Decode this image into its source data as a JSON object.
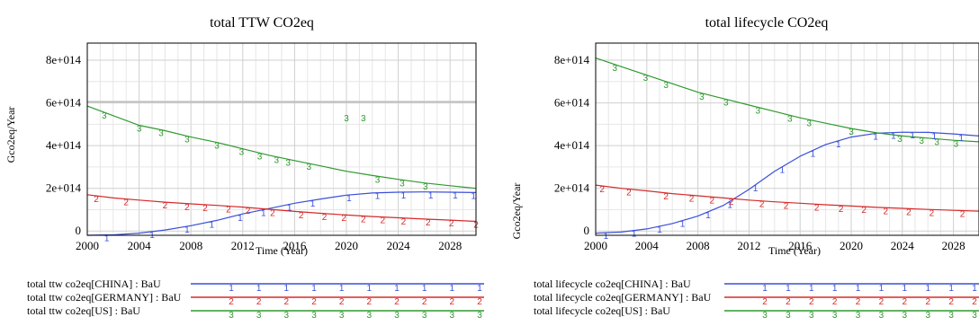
{
  "chart_data": [
    {
      "type": "line",
      "title": "total TTW CO2eq",
      "xlabel": "Time (Year)",
      "ylabel": "Gco2eq/Year",
      "xlim": [
        2000,
        2030
      ],
      "ylim": [
        -20000000000000.0,
        880000000000000.0
      ],
      "x_ticks": [
        2000,
        2004,
        2008,
        2012,
        2016,
        2020,
        2024,
        2028
      ],
      "y_ticks": [
        0,
        200000000000000.0,
        400000000000000.0,
        600000000000000.0,
        800000000000000.0
      ],
      "y_tick_labels": [
        "0",
        "2e+014",
        "4e+014",
        "6e+014",
        "8e+014"
      ],
      "reference_line": {
        "y": 605000000000000.0,
        "color": "#c0c0c0"
      },
      "series": [
        {
          "name": "total ttw co2eq[CHINA] : BaU",
          "marker": "1",
          "color": "#3a4fd8",
          "x": [
            2000,
            2002,
            2004,
            2006,
            2008,
            2010,
            2012,
            2014,
            2016,
            2018,
            2020,
            2022,
            2024,
            2026,
            2028,
            2030
          ],
          "y": [
            -20000000000000.0,
            -18000000000000.0,
            -10000000000000.0,
            5000000000000.0,
            25000000000000.0,
            50000000000000.0,
            80000000000000.0,
            105000000000000.0,
            130000000000000.0,
            150000000000000.0,
            168000000000000.0,
            178000000000000.0,
            182000000000000.0,
            183000000000000.0,
            182000000000000.0,
            180000000000000.0
          ],
          "marker_x": [
            2001.5,
            2005,
            2007.7,
            2009.6,
            2011.8,
            2013.6,
            2015.6,
            2017.4,
            2020.2,
            2022.4,
            2024.4,
            2026.5,
            2028.4,
            2029.8
          ]
        },
        {
          "name": "total ttw co2eq[GERMANY] : BaU",
          "marker": "2",
          "color": "#d52a2a",
          "x": [
            2000,
            2002,
            2004,
            2006,
            2008,
            2010,
            2012,
            2014,
            2016,
            2018,
            2020,
            2022,
            2024,
            2026,
            2028,
            2030
          ],
          "y": [
            170000000000000.0,
            155000000000000.0,
            145000000000000.0,
            135000000000000.0,
            127000000000000.0,
            120000000000000.0,
            112000000000000.0,
            102000000000000.0,
            92000000000000.0,
            83000000000000.0,
            75000000000000.0,
            68000000000000.0,
            62000000000000.0,
            56000000000000.0,
            51000000000000.0,
            45000000000000.0
          ],
          "marker_x": [
            2000.7,
            2003,
            2006,
            2007.7,
            2009.1,
            2010.9,
            2012.4,
            2014.3,
            2016.5,
            2018.3,
            2019.8,
            2021.3,
            2022.8,
            2024.4,
            2026.3,
            2028.1,
            2030
          ]
        },
        {
          "name": "total ttw co2eq[US] : BaU",
          "marker": "3",
          "color": "#2f9a2f",
          "x": [
            2000,
            2002,
            2004,
            2006,
            2008,
            2010,
            2012,
            2014,
            2016,
            2018,
            2020,
            2022,
            2024,
            2026,
            2028,
            2030
          ],
          "y": [
            585000000000000.0,
            540000000000000.0,
            495000000000000.0,
            470000000000000.0,
            440000000000000.0,
            415000000000000.0,
            385000000000000.0,
            355000000000000.0,
            330000000000000.0,
            305000000000000.0,
            280000000000000.0,
            260000000000000.0,
            242000000000000.0,
            225000000000000.0,
            212000000000000.0,
            200000000000000.0
          ],
          "marker_x": [
            2001.3,
            2004,
            2005.7,
            2007.7,
            2010,
            2011.9,
            2013.3,
            2014.6,
            2015.5,
            2017.1,
            2022.4,
            2024.3,
            2026.1
          ],
          "outlier_markers": [
            [
              2020,
              530000000000000.0
            ],
            [
              2021.3,
              530000000000000.0
            ]
          ]
        }
      ],
      "legend": [
        "total ttw co2eq[CHINA] : BaU",
        "total ttw co2eq[GERMANY] : BaU",
        "total ttw co2eq[US] : BaU"
      ],
      "legend_position": "bottom-left"
    },
    {
      "type": "line",
      "title": "total lifecycle CO2eq",
      "xlabel": "Time (Year)",
      "ylabel": "Gco2eq/Year",
      "xlim": [
        2000,
        2030
      ],
      "ylim": [
        -20000000000000.0,
        880000000000000.0
      ],
      "x_ticks": [
        2000,
        2004,
        2008,
        2012,
        2016,
        2020,
        2024,
        2028
      ],
      "y_ticks": [
        0,
        200000000000000.0,
        400000000000000.0,
        600000000000000.0,
        800000000000000.0
      ],
      "y_tick_labels": [
        "0",
        "2e+014",
        "4e+014",
        "6e+014",
        "8e+014"
      ],
      "series": [
        {
          "name": "total lifecycle co2eq[CHINA] : BaU",
          "marker": "1",
          "color": "#3a4fd8",
          "x": [
            2000,
            2002,
            2004,
            2006,
            2008,
            2010,
            2012,
            2014,
            2016,
            2018,
            2020,
            2022,
            2024,
            2026,
            2028,
            2030
          ],
          "y": [
            -10000000000000.0,
            -5000000000000.0,
            10000000000000.0,
            35000000000000.0,
            70000000000000.0,
            120000000000000.0,
            195000000000000.0,
            280000000000000.0,
            350000000000000.0,
            405000000000000.0,
            440000000000000.0,
            458000000000000.0,
            463000000000000.0,
            462000000000000.0,
            455000000000000.0,
            445000000000000.0
          ],
          "marker_x": [
            2000.8,
            2003,
            2005,
            2006.8,
            2008.8,
            2010.5,
            2012.5,
            2014.6,
            2017,
            2019,
            2021.9,
            2023.3,
            2024.8,
            2026.5,
            2028.6
          ]
        },
        {
          "name": "total lifecycle co2eq[GERMANY] : BaU",
          "marker": "2",
          "color": "#d52a2a",
          "x": [
            2000,
            2002,
            2004,
            2006,
            2008,
            2010,
            2012,
            2014,
            2016,
            2018,
            2020,
            2022,
            2024,
            2026,
            2028,
            2030
          ],
          "y": [
            215000000000000.0,
            200000000000000.0,
            188000000000000.0,
            175000000000000.0,
            165000000000000.0,
            155000000000000.0,
            145000000000000.0,
            137000000000000.0,
            130000000000000.0,
            123000000000000.0,
            117000000000000.0,
            111000000000000.0,
            106000000000000.0,
            101000000000000.0,
            97000000000000.0,
            93000000000000.0
          ],
          "marker_x": [
            2000.5,
            2002.6,
            2005.5,
            2007.5,
            2009.1,
            2010.6,
            2013,
            2014.9,
            2017.3,
            2019.2,
            2021,
            2022.7,
            2024.5,
            2026.3,
            2028.7
          ]
        },
        {
          "name": "total lifecycle co2eq[US] : BaU",
          "marker": "3",
          "color": "#2f9a2f",
          "x": [
            2000,
            2002,
            2004,
            2006,
            2008,
            2010,
            2012,
            2014,
            2016,
            2018,
            2020,
            2022,
            2024,
            2026,
            2028,
            2030
          ],
          "y": [
            810000000000000.0,
            770000000000000.0,
            730000000000000.0,
            690000000000000.0,
            650000000000000.0,
            620000000000000.0,
            590000000000000.0,
            560000000000000.0,
            530000000000000.0,
            505000000000000.0,
            480000000000000.0,
            460000000000000.0,
            445000000000000.0,
            435000000000000.0,
            425000000000000.0,
            418000000000000.0
          ],
          "marker_x": [
            2001.5,
            2003.9,
            2005.5,
            2008.3,
            2010.2,
            2012.7,
            2015.2,
            2016.7,
            2020,
            2023.8,
            2025.5,
            2026.7,
            2028.2
          ]
        }
      ],
      "legend": [
        "total lifecycle co2eq[CHINA] : BaU",
        "total lifecycle co2eq[GERMANY] : BaU",
        "total lifecycle co2eq[US] : BaU"
      ],
      "legend_position": "bottom-left"
    }
  ]
}
